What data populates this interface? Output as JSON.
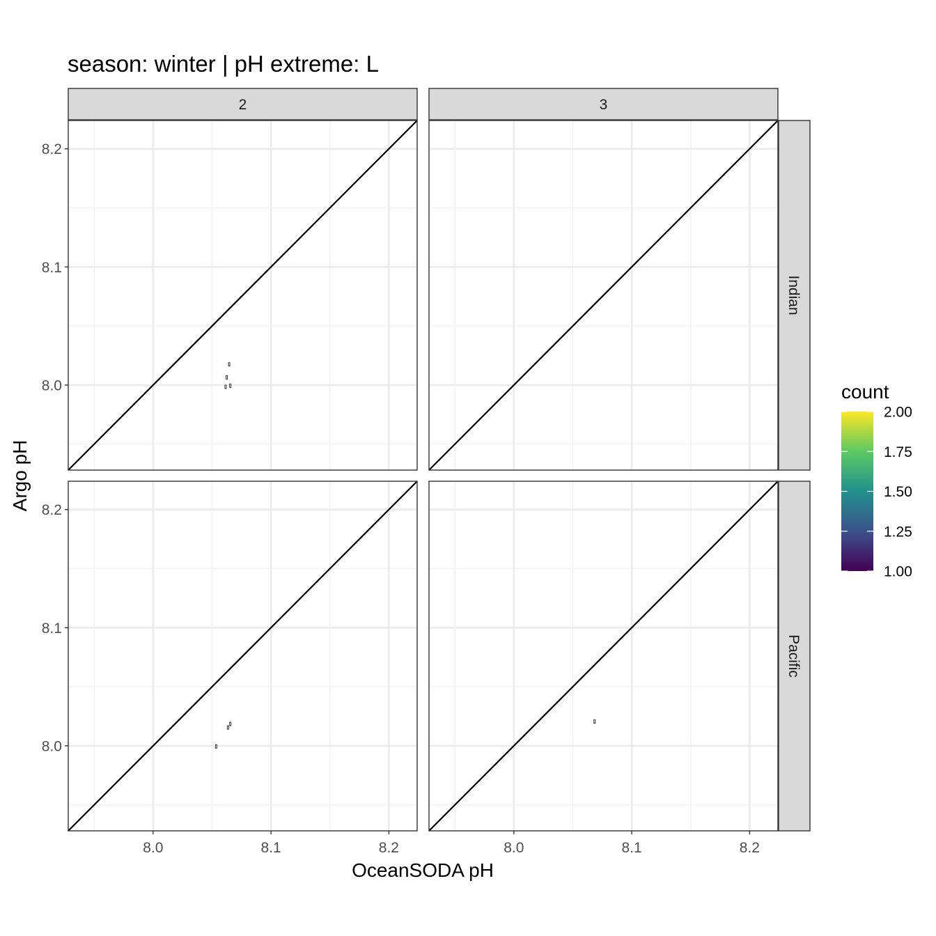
{
  "chart_data": {
    "type": "heatmap",
    "title": "season: winter | pH extreme: L",
    "xlabel": "OceanSODA pH",
    "ylabel": "Argo pH",
    "xlim": [
      7.928,
      8.224
    ],
    "ylim": [
      7.928,
      8.224
    ],
    "x_ticks": [
      {
        "value": 8.0,
        "label": "8.0"
      },
      {
        "value": 8.1,
        "label": "8.1"
      },
      {
        "value": 8.2,
        "label": "8.2"
      }
    ],
    "y_ticks": [
      {
        "value": 8.0,
        "label": "8.0"
      },
      {
        "value": 8.1,
        "label": "8.1"
      },
      {
        "value": 8.2,
        "label": "8.2"
      }
    ],
    "grid": true,
    "reference_line": "y = x",
    "facet_cols": [
      "2",
      "3"
    ],
    "facet_rows": [
      "Indian",
      "Pacific"
    ],
    "panels": [
      {
        "col": "2",
        "row": "Indian",
        "cells": [
          {
            "x": 8.0645,
            "y": 8.0175,
            "count": 1
          },
          {
            "x": 8.0625,
            "y": 8.0065,
            "count": 1
          },
          {
            "x": 8.0615,
            "y": 7.9985,
            "count": 1
          },
          {
            "x": 8.0655,
            "y": 7.9995,
            "count": 1
          }
        ]
      },
      {
        "col": "3",
        "row": "Indian",
        "cells": []
      },
      {
        "col": "2",
        "row": "Pacific",
        "cells": [
          {
            "x": 8.0655,
            "y": 8.0185,
            "count": 1
          },
          {
            "x": 8.0635,
            "y": 8.0155,
            "count": 1
          },
          {
            "x": 8.0535,
            "y": 7.9995,
            "count": 1
          }
        ]
      },
      {
        "col": "3",
        "row": "Pacific",
        "cells": [
          {
            "x": 8.0685,
            "y": 8.0205,
            "count": 1
          }
        ]
      }
    ],
    "legend": {
      "title": "count",
      "position": "right",
      "min": 1.0,
      "max": 2.0,
      "breaks": [
        {
          "value": 2.0,
          "label": "2.00"
        },
        {
          "value": 1.75,
          "label": "1.75"
        },
        {
          "value": 1.5,
          "label": "1.50"
        },
        {
          "value": 1.25,
          "label": "1.25"
        },
        {
          "value": 1.0,
          "label": "1.00"
        }
      ],
      "palette": "viridis",
      "colors": [
        "#440154",
        "#3b528b",
        "#21908c",
        "#5dc963",
        "#fde725"
      ]
    },
    "cell_color": "#ffffff"
  }
}
